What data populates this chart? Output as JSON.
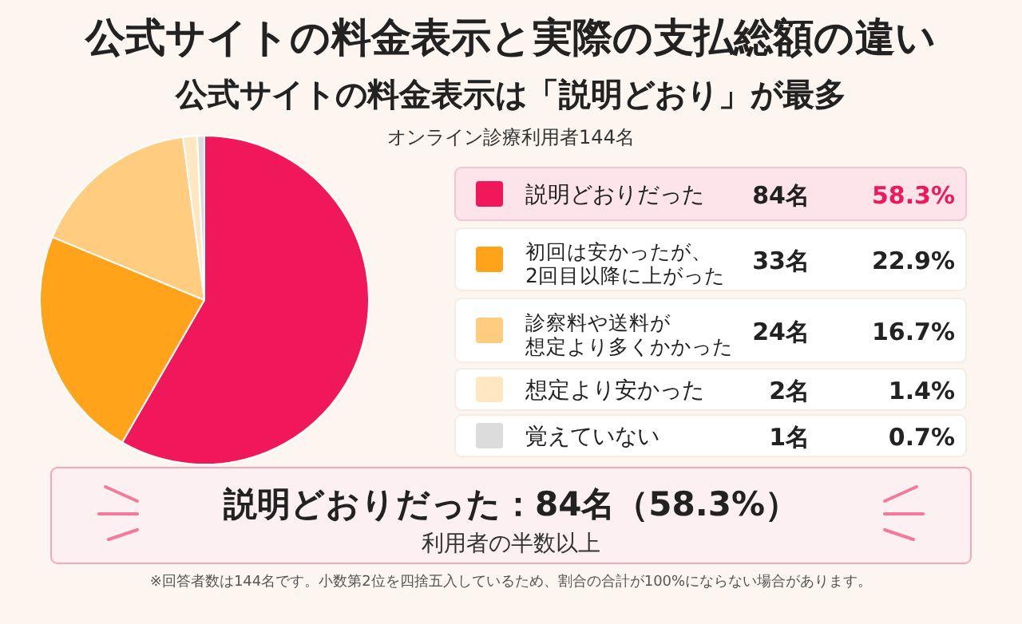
{
  "chart_data": {
    "type": "pie",
    "title": "公式サイトの料金表示と実際の支払総額の違い",
    "subtitle": "公式サイトの料金表示は「説明どおり」が最多",
    "categories": [
      "説明どおりだった",
      "初回は安かったが、2回目以降に上がった",
      "診察料や送料が想定より多くかかった",
      "想定より安かった",
      "覚えていない"
    ],
    "values": [
      84,
      33,
      24,
      2,
      1
    ],
    "colors": [
      "#f0185a",
      "#ffa31a",
      "#ffcc80",
      "#ffe7c2",
      "#dcdcdc"
    ],
    "value_labels": [
      "84名",
      "33名",
      "24名",
      "2名",
      "1名"
    ],
    "legend": "right",
    "annotations": [
      "オンライン診療利用者144名",
      {
        "text": "58.3%",
        "x": "説明どおりだった"
      },
      {
        "text": "22.9%",
        "x": "初回は安かったが、2回目以降に上がった"
      },
      {
        "text": "16.7%",
        "x": "診察料や送料が想定より多くかかった"
      },
      {
        "text": "1.4%",
        "x": "想定より安かった"
      },
      {
        "text": "0.7%",
        "x": "覚えていない"
      },
      "説明どおりだった：84名（58.3%）",
      "利用者の半数以上",
      "※回答者数は144名です。小数第2位を四捨五入しているため、割合の合計が100%にならない場合があります。"
    ]
  }
}
